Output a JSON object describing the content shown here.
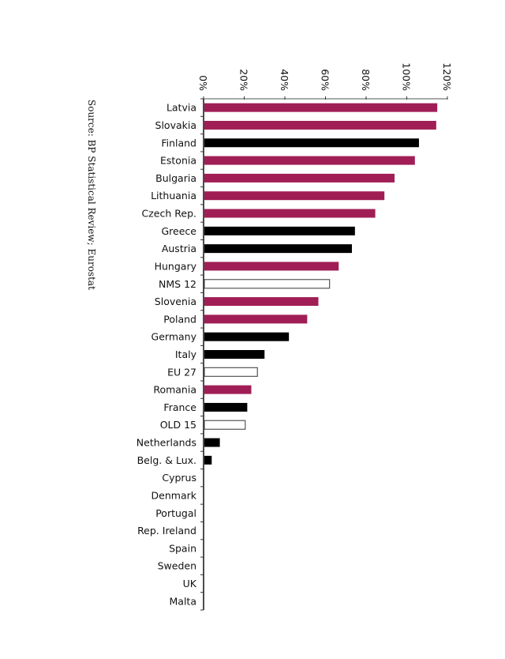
{
  "chart_data": {
    "type": "bar",
    "orientation": "horizontal",
    "source": "Source: BP Statistical Review; Eurostat",
    "xlim": [
      0,
      120
    ],
    "ticks": [
      "0%",
      "20%",
      "40%",
      "60%",
      "80%",
      "100%",
      "120%"
    ],
    "tick_values": [
      0,
      20,
      40,
      60,
      80,
      100,
      120
    ],
    "colors": {
      "nms": "#a01e55",
      "old": "#000000",
      "aggregate": "#ffffff",
      "aggregate_border": "#555555"
    },
    "categories": [
      "Latvia",
      "Slovakia",
      "Finland",
      "Estonia",
      "Bulgaria",
      "Lithuania",
      "Czech Rep.",
      "Greece",
      "Austria",
      "Hungary",
      "NMS 12",
      "Slovenia",
      "Poland",
      "Germany",
      "Italy",
      "EU 27",
      "Romania",
      "France",
      "OLD 15",
      "Netherlands",
      "Belg. & Lux.",
      "Cyprus",
      "Denmark",
      "Portugal",
      "Rep. Ireland",
      "Spain",
      "Sweden",
      "UK",
      "Malta"
    ],
    "values": [
      115,
      114.5,
      106,
      104,
      94,
      89,
      84.5,
      74.5,
      73,
      66.5,
      62,
      56.5,
      51,
      42,
      30,
      26.5,
      23.5,
      21.5,
      20.5,
      8,
      4,
      0,
      0,
      0,
      0,
      0,
      0,
      0,
      0
    ],
    "groups": [
      "nms",
      "nms",
      "old",
      "nms",
      "nms",
      "nms",
      "nms",
      "old",
      "old",
      "nms",
      "aggregate",
      "nms",
      "nms",
      "old",
      "old",
      "aggregate",
      "nms",
      "old",
      "aggregate",
      "old",
      "old",
      "nms",
      "old",
      "old",
      "old",
      "old",
      "old",
      "old",
      "nms"
    ]
  }
}
